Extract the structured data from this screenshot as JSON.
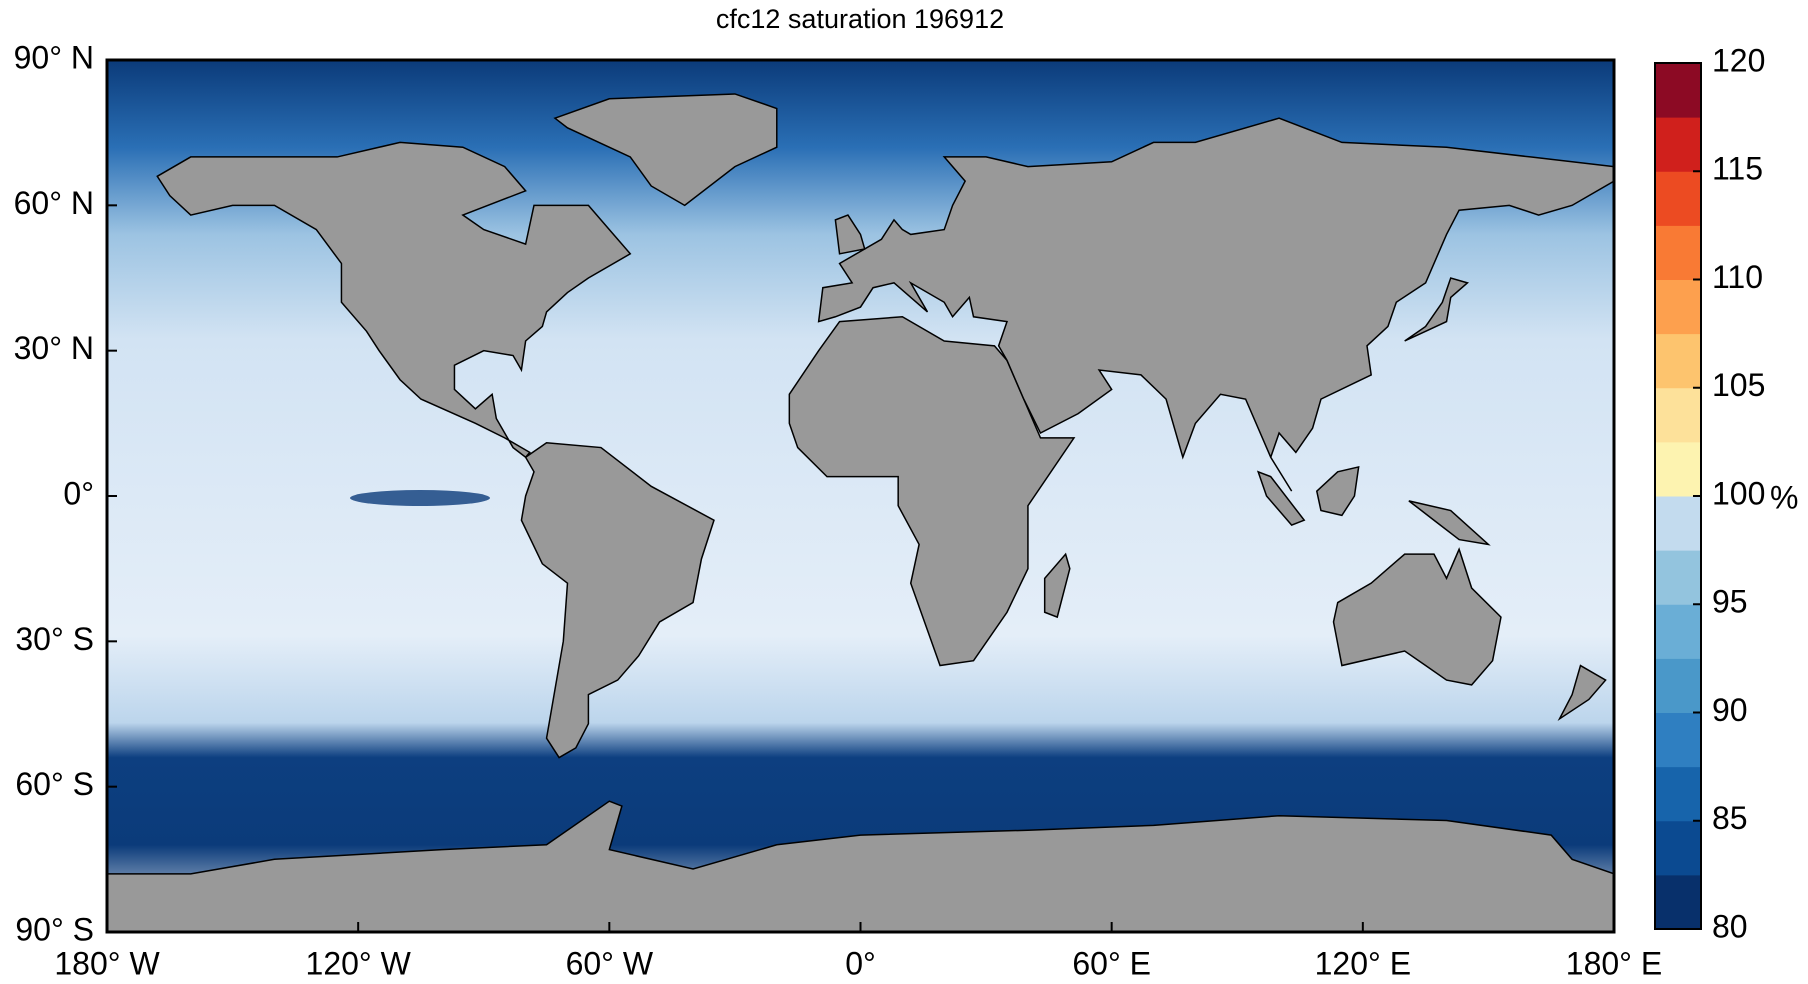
{
  "chart_data": {
    "type": "map",
    "title": "cfc12 saturation 196912",
    "xlim": [
      -180,
      180
    ],
    "xticks": [
      {
        "value": -180,
        "label": "180° W"
      },
      {
        "value": -120,
        "label": "120° W"
      },
      {
        "value": -60,
        "label": "60° W"
      },
      {
        "value": 0,
        "label": "0°"
      },
      {
        "value": 60,
        "label": "60° E"
      },
      {
        "value": 120,
        "label": "120° E"
      },
      {
        "value": 180,
        "label": "180° E"
      }
    ],
    "ylim": [
      -90,
      90
    ],
    "yticks": [
      {
        "value": 90,
        "label": "90° N"
      },
      {
        "value": 60,
        "label": "60° N"
      },
      {
        "value": 30,
        "label": "30° N"
      },
      {
        "value": 0,
        "label": "0°"
      },
      {
        "value": -30,
        "label": "30° S"
      },
      {
        "value": -60,
        "label": "60° S"
      },
      {
        "value": -90,
        "label": "90° S"
      }
    ],
    "colorbar": {
      "label": "%",
      "lim": [
        80,
        120
      ],
      "ticks": [
        80,
        85,
        90,
        95,
        100,
        105,
        110,
        115,
        120
      ],
      "colors": [
        "#08306b",
        "#0b4a91",
        "#1764ab",
        "#2f7fc1",
        "#4a98c9",
        "#6aaed6",
        "#93c4de",
        "#c3dbee",
        "#fdf3b0",
        "#fde19a",
        "#fdc46e",
        "#fda04e",
        "#f97a34",
        "#ec4b22",
        "#d0201c",
        "#8c0a24"
      ]
    }
  }
}
